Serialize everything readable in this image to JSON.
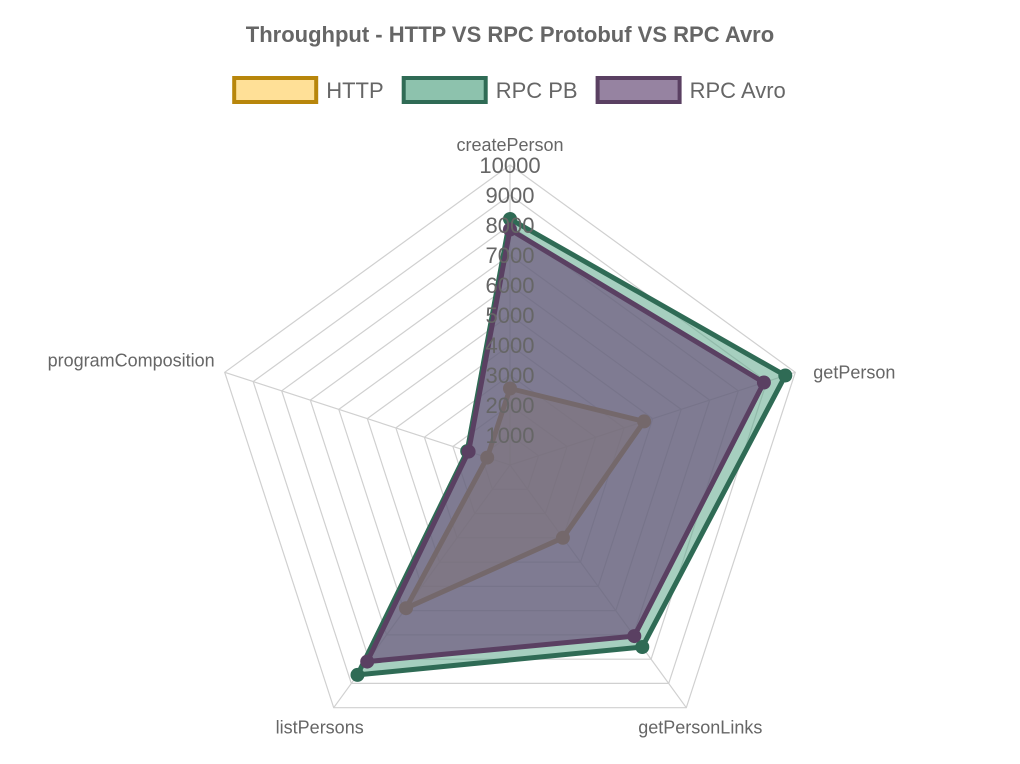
{
  "chart_data": {
    "type": "radar",
    "title": "Throughput - HTTP VS RPC Protobuf VS RPC Avro",
    "categories": [
      "createPerson",
      "getPerson",
      "getPersonLinks",
      "listPersons",
      "programComposition"
    ],
    "r_range": [
      0,
      10000
    ],
    "tick_values": [
      1000,
      2000,
      3000,
      4000,
      5000,
      6000,
      7000,
      8000,
      9000,
      10000
    ],
    "tick_labels": [
      "1000",
      "2000",
      "3000",
      "4000",
      "5000",
      "6000",
      "7000",
      "8000",
      "9000",
      "10000"
    ],
    "grid": true,
    "legend_position": "top",
    "series": [
      {
        "name": "HTTP",
        "values": [
          2550,
          4700,
          3000,
          5900,
          800
        ],
        "border_color": "#b8860b",
        "fill_color": "#ffd36b",
        "fill_opacity": 0.55
      },
      {
        "name": "RPC PB",
        "values": [
          8200,
          9650,
          7500,
          8650,
          1500
        ],
        "border_color": "#2f6b55",
        "fill_color": "#5ca88a",
        "fill_opacity": 0.55
      },
      {
        "name": "RPC Avro",
        "values": [
          7850,
          8900,
          7050,
          8100,
          1450
        ],
        "border_color": "#5a4062",
        "fill_color": "#6a4f79",
        "fill_opacity": 0.65
      }
    ]
  }
}
